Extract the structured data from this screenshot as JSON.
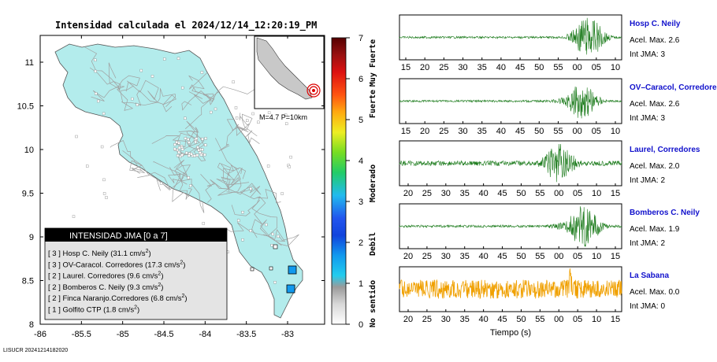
{
  "title": "Intensidad calculada el 2024/12/14_12:20:19_PM",
  "footer": "LISUCR 20241214182020",
  "map": {
    "x_ticks": [
      "-86",
      "-85.5",
      "-85",
      "-84.5",
      "-84",
      "-83.5",
      "-83"
    ],
    "y_ticks": [
      "11",
      "10.5",
      "10",
      "9.5",
      "9",
      "8.5",
      "8"
    ],
    "inset_label": "M=4.7  P=10km",
    "land_color": "#b3ecec",
    "station_color": "#1f8fe0"
  },
  "legend": {
    "title": "INTENSIDAD JMA [0 a 7]",
    "items": [
      {
        "level": "[ 3 ]",
        "name": "Hosp C. Neily",
        "value": "(31.1 cm/s",
        "sup": "2",
        "close": ")"
      },
      {
        "level": "[ 3 ]",
        "name": "OV-Caracol. Corredores",
        "value": "(17.3 cm/s",
        "sup": "2",
        "close": ")"
      },
      {
        "level": "[ 2 ]",
        "name": "Laurel. Corredores",
        "value": "(9.6 cm/s",
        "sup": "2",
        "close": ")"
      },
      {
        "level": "[ 2 ]",
        "name": "Bomberos C. Neily",
        "value": "(9.3 cm/s",
        "sup": "2",
        "close": ")"
      },
      {
        "level": "[ 2 ]",
        "name": "Finca Naranjo.Corredores",
        "value": "(6.8 cm/s",
        "sup": "2",
        "close": ")"
      },
      {
        "level": "[ 1 ]",
        "name": "Golfito CTP",
        "value": "(1.8 cm/s",
        "sup": "2",
        "close": ")"
      }
    ]
  },
  "colorbar": {
    "ticks": [
      "0",
      "1",
      "2",
      "3",
      "4",
      "5",
      "6",
      "7"
    ],
    "labels": [
      "No sentido",
      "Debil",
      "Moderado",
      "Fuerte",
      "Muy Fuerte"
    ]
  },
  "traces": [
    {
      "name": "Hosp C. Neily",
      "acel": "Acel. Max. 2.6",
      "jma": "Int JMA: 3",
      "ticks": [
        "15",
        "20",
        "25",
        "30",
        "35",
        "40",
        "45",
        "50",
        "55",
        "00",
        "05",
        "10"
      ],
      "color": "#1a7a1a",
      "noise": 0.05,
      "onset": 0.72,
      "peak": 0.85,
      "amp": 1.0
    },
    {
      "name": "OV–Caracol, Corredore",
      "acel": "Acel. Max. 2.6",
      "jma": "Int JMA: 3",
      "ticks": [
        "15",
        "20",
        "25",
        "30",
        "35",
        "40",
        "45",
        "50",
        "55",
        "00",
        "05",
        "10"
      ],
      "color": "#1a7a1a",
      "noise": 0.05,
      "onset": 0.64,
      "peak": 0.82,
      "amp": 0.85
    },
    {
      "name": "Laurel, Corredores",
      "acel": "Acel. Max. 2.0",
      "jma": "Int JMA: 2",
      "ticks": [
        "20",
        "25",
        "30",
        "35",
        "40",
        "45",
        "50",
        "55",
        "00",
        "05",
        "10",
        "15"
      ],
      "color": "#1a7a1a",
      "noise": 0.12,
      "onset": 0.6,
      "peak": 0.72,
      "amp": 1.0
    },
    {
      "name": "Bomberos C. Neily",
      "acel": "Acel. Max. 1.9",
      "jma": "Int JMA: 2",
      "ticks": [
        "20",
        "25",
        "30",
        "35",
        "40",
        "45",
        "50",
        "55",
        "00",
        "05",
        "10",
        "15"
      ],
      "color": "#1a7a1a",
      "noise": 0.06,
      "onset": 0.62,
      "peak": 0.83,
      "amp": 1.0
    },
    {
      "name": "La Sabana",
      "acel": "Acel. Max. 0.0",
      "jma": "Int JMA: 0",
      "ticks": [
        "20",
        "25",
        "30",
        "35",
        "40",
        "45",
        "50",
        "55",
        "00",
        "05",
        "10",
        "15"
      ],
      "color": "#f0a000",
      "noise": 0.45,
      "onset": 1.5,
      "peak": 0.77,
      "amp": 0.45
    }
  ],
  "time_label": "Tiempo (s)",
  "chart_data": {
    "type": "scatter",
    "title": "Intensidad calculada el 2024/12/14_12:20:19_PM",
    "xlabel": "",
    "ylabel": "",
    "xlim": [
      -86,
      -82.6
    ],
    "ylim": [
      8,
      11.3
    ],
    "magnitude": "M=4.7",
    "depth": "P=10km",
    "stations": [
      {
        "name": "Hosp C. Neily",
        "jma": 3,
        "pga_cms2": 31.1
      },
      {
        "name": "OV-Caracol. Corredores",
        "jma": 3,
        "pga_cms2": 17.3
      },
      {
        "name": "Laurel. Corredores",
        "jma": 2,
        "pga_cms2": 9.6
      },
      {
        "name": "Bomberos C. Neily",
        "jma": 2,
        "pga_cms2": 9.3
      },
      {
        "name": "Finca Naranjo.Corredores",
        "jma": 2,
        "pga_cms2": 6.8
      },
      {
        "name": "Golfito CTP",
        "jma": 1,
        "pga_cms2": 1.8
      }
    ],
    "markers": [
      {
        "lon": -82.95,
        "lat": 8.64,
        "jma": 3
      },
      {
        "lon": -82.97,
        "lat": 8.4,
        "jma": 3
      }
    ],
    "colorbar_range": [
      0,
      7
    ]
  }
}
